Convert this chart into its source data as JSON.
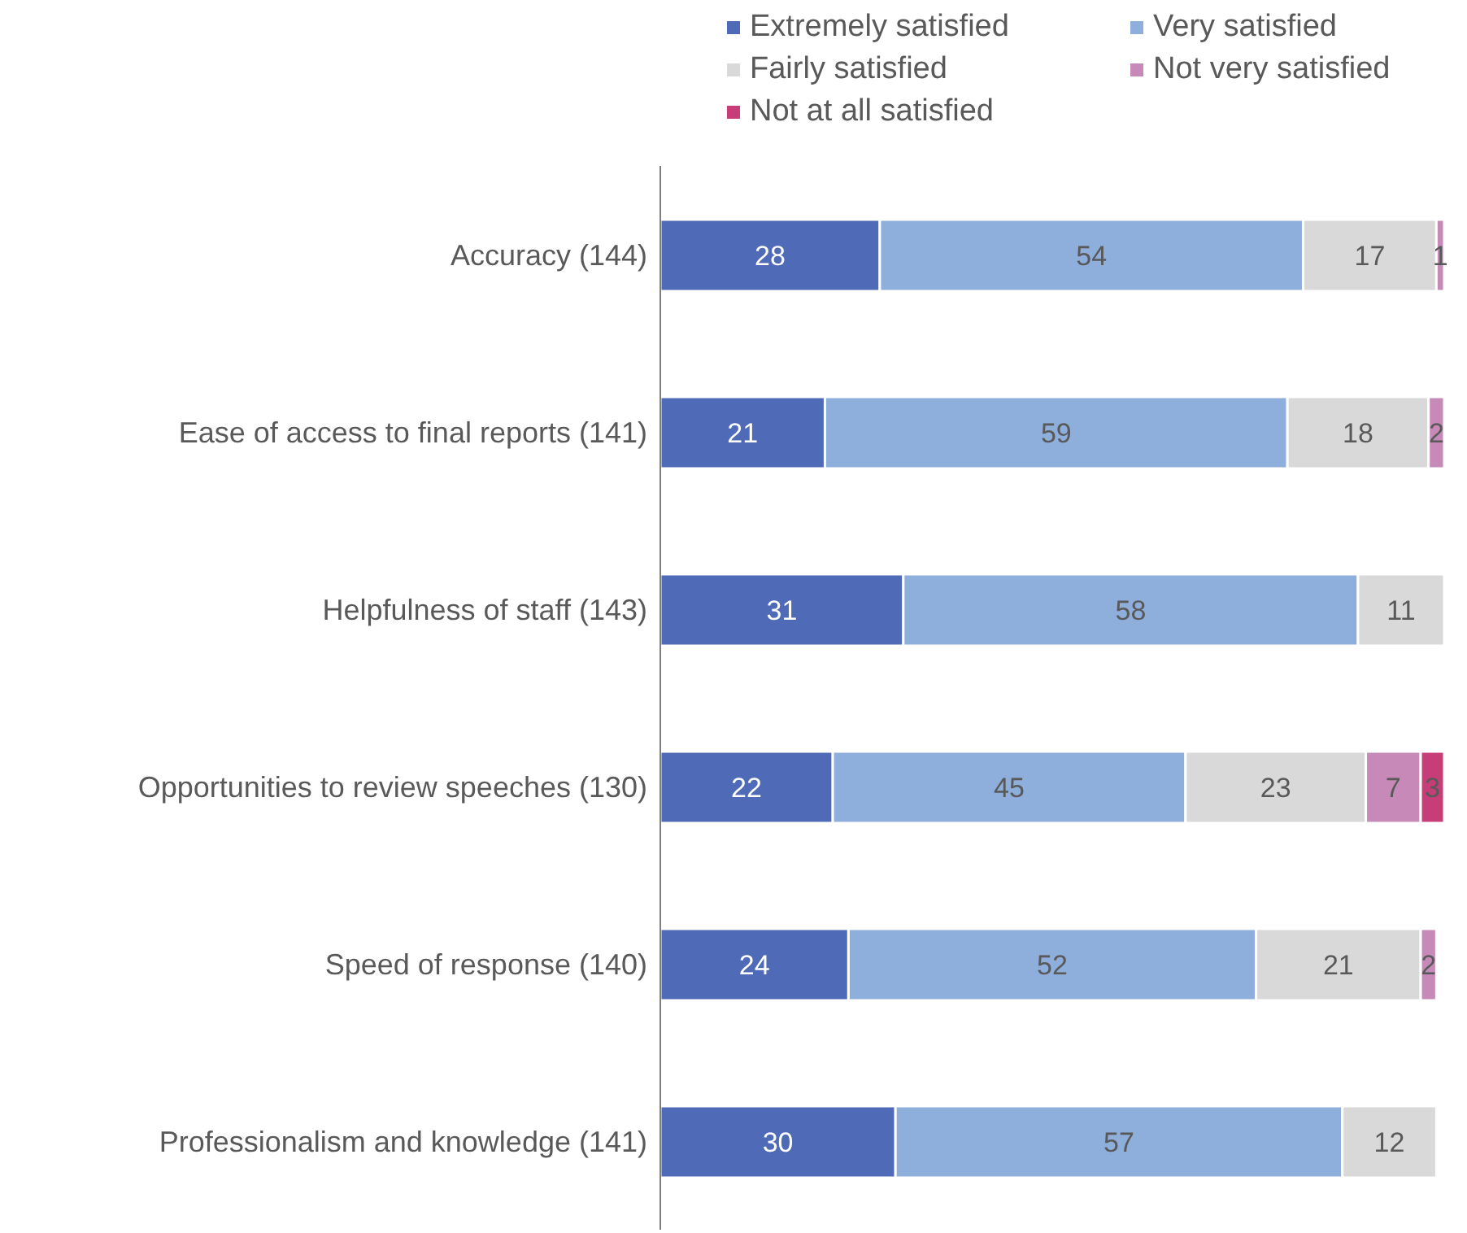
{
  "chart_data": {
    "type": "bar",
    "orientation": "horizontal",
    "stacked": true,
    "data_labels": true,
    "legend": "top",
    "tick_labels": "y",
    "xlim": [
      0,
      100
    ],
    "categories": [
      "Accuracy (144)",
      "Ease of access to final reports (141)",
      "Helpfulness of staff (143)",
      "Opportunities to review speeches (130)",
      "Speed of response (140)",
      "Professionalism and knowledge (141)"
    ],
    "series": [
      {
        "name": "Extremely satisfied",
        "color": "#4f6bb7",
        "values": [
          28,
          21,
          31,
          22,
          24,
          30
        ]
      },
      {
        "name": "Very satisfied",
        "color": "#8eaedb",
        "values": [
          54,
          59,
          58,
          45,
          52,
          57
        ]
      },
      {
        "name": "Fairly satisfied",
        "color": "#d9d9d9",
        "values": [
          17,
          18,
          11,
          23,
          21,
          12
        ]
      },
      {
        "name": "Not very satisfied",
        "color": "#c78ab8",
        "values": [
          1,
          2,
          null,
          7,
          2,
          null
        ]
      },
      {
        "name": "Not at all satisfied",
        "color": "#c63d78",
        "values": [
          null,
          null,
          null,
          3,
          null,
          null
        ]
      }
    ]
  }
}
